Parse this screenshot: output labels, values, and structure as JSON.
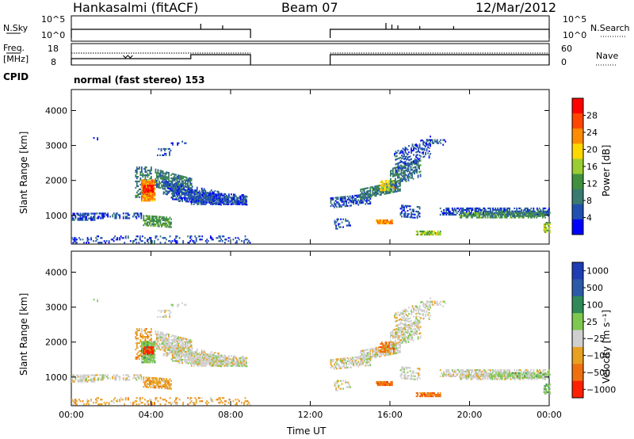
{
  "header": {
    "station": "Hankasalmi (fitACF)",
    "beam": "Beam 07",
    "date": "12/Mar/2012"
  },
  "panels": {
    "nsky_label": "N.Sky",
    "nsearch_label": "N.Search",
    "freq_label_top": "Freq.",
    "freq_label_bottom": "[MHz]",
    "nave_label": "Nave",
    "cpid_label": "CPID",
    "cpid_value": "normal (fast stereo) 153",
    "noise_ticks_left": [
      "10^5",
      "10^0"
    ],
    "noise_ticks_right": [
      "10^5",
      "10^0"
    ],
    "freq_ticks_left": [
      "18",
      "8"
    ],
    "nave_ticks_right": [
      "60",
      "0"
    ]
  },
  "colors": {
    "power_scale": [
      "#0000ff",
      "#2050b0",
      "#3a7a70",
      "#409040",
      "#9acd32",
      "#ffd700",
      "#ff8c00",
      "#ff4500",
      "#ff0000"
    ],
    "velocity_scale": [
      "#1e3cb4",
      "#2a5aa8",
      "#2e8b57",
      "#7ec850",
      "#cfcfcf",
      "#e8a020",
      "#f07010",
      "#ff2000"
    ]
  },
  "chart_data": [
    {
      "type": "heatmap",
      "title": "",
      "xlabel": "Time UT",
      "ylabel": "Slant Range [km]",
      "x_ticks": [
        "00:00",
        "04:00",
        "08:00",
        "12:00",
        "16:00",
        "20:00",
        "00:00"
      ],
      "y_ticks": [
        "1000",
        "2000",
        "3000",
        "4000"
      ],
      "xlim_hours": [
        0,
        24
      ],
      "ylim_km": [
        180,
        4600
      ],
      "colorbar": {
        "label": "Power [dB]",
        "ticks": [
          "4",
          "8",
          "12",
          "16",
          "20",
          "24",
          "28"
        ],
        "range": [
          0,
          30
        ]
      },
      "data_gaps_hours": [
        [
          9,
          13
        ]
      ]
    },
    {
      "type": "heatmap",
      "title": "",
      "xlabel": "Time UT",
      "ylabel": "Slant Range [km]",
      "x_ticks": [
        "00:00",
        "04:00",
        "08:00",
        "12:00",
        "16:00",
        "20:00",
        "00:00"
      ],
      "y_ticks": [
        "1000",
        "2000",
        "3000",
        "4000"
      ],
      "xlim_hours": [
        0,
        24
      ],
      "ylim_km": [
        180,
        4600
      ],
      "colorbar": {
        "label": "Velocity [m s⁻¹]",
        "ticks": [
          "1000",
          "500",
          "100",
          "25",
          "−25",
          "−100",
          "−500",
          "−1000"
        ]
      },
      "data_gaps_hours": [
        [
          9,
          13
        ]
      ]
    }
  ]
}
